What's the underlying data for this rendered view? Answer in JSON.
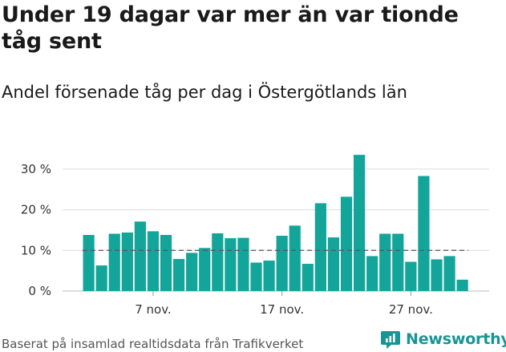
{
  "title": "Under 19 dagar var mer än var tionde tåg sent",
  "subtitle": "Andel försenade tåg per dag i Östergötlands län",
  "source": "Baserat på insamlad realtidsdata från Trafikverket",
  "brand": {
    "name": "Newsworthy",
    "logo_icon": "newsworthy-chart-logo-icon",
    "color": "#179595"
  },
  "colors": {
    "bar": "#14a59a",
    "reference_line": "#555555",
    "grid": "#dddddd"
  },
  "chart_data": {
    "type": "bar",
    "x_ticks": [
      "7 nov.",
      "17 nov.",
      "27 nov."
    ],
    "x_start_day": 2,
    "series": [
      {
        "values": [
          13.8,
          6.3,
          14.1,
          14.4,
          17.1,
          14.7,
          13.8,
          7.9,
          9.4,
          10.6,
          14.2,
          13.0,
          13.1,
          7.0,
          7.5,
          13.6,
          16.1,
          6.7,
          21.6,
          13.2,
          23.2,
          33.5,
          8.6,
          14.1,
          14.1,
          7.2,
          28.3,
          7.8,
          8.6,
          2.8
        ]
      }
    ],
    "reference_line": 10,
    "ylim": [
      0,
      35
    ],
    "y_ticks": [
      "0 %",
      "10 %",
      "20 %",
      "30 %"
    ],
    "grid": true
  }
}
